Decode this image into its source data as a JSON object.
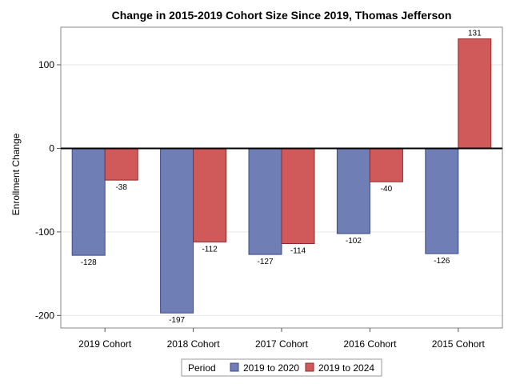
{
  "chart_data": {
    "type": "bar",
    "title": "Change in 2015-2019 Cohort Size Since 2019, Thomas Jefferson",
    "xlabel": "",
    "ylabel": "Enrollment Change",
    "categories": [
      "2019 Cohort",
      "2018 Cohort",
      "2017 Cohort",
      "2016 Cohort",
      "2015 Cohort"
    ],
    "series": [
      {
        "name": "2019 to 2020",
        "color": "#6f7fb5",
        "stroke": "#3b4a8a",
        "values": [
          -128,
          -197,
          -127,
          -102,
          -126
        ]
      },
      {
        "name": "2019 to 2024",
        "color": "#d05a5a",
        "stroke": "#8e2a2a",
        "values": [
          -38,
          -112,
          -114,
          -40,
          131
        ]
      }
    ],
    "ylim": [
      -215,
      145
    ],
    "yticks": [
      -200,
      -100,
      0,
      100
    ],
    "grid": true,
    "legend": {
      "title": "Period",
      "placement": "bottom"
    }
  }
}
